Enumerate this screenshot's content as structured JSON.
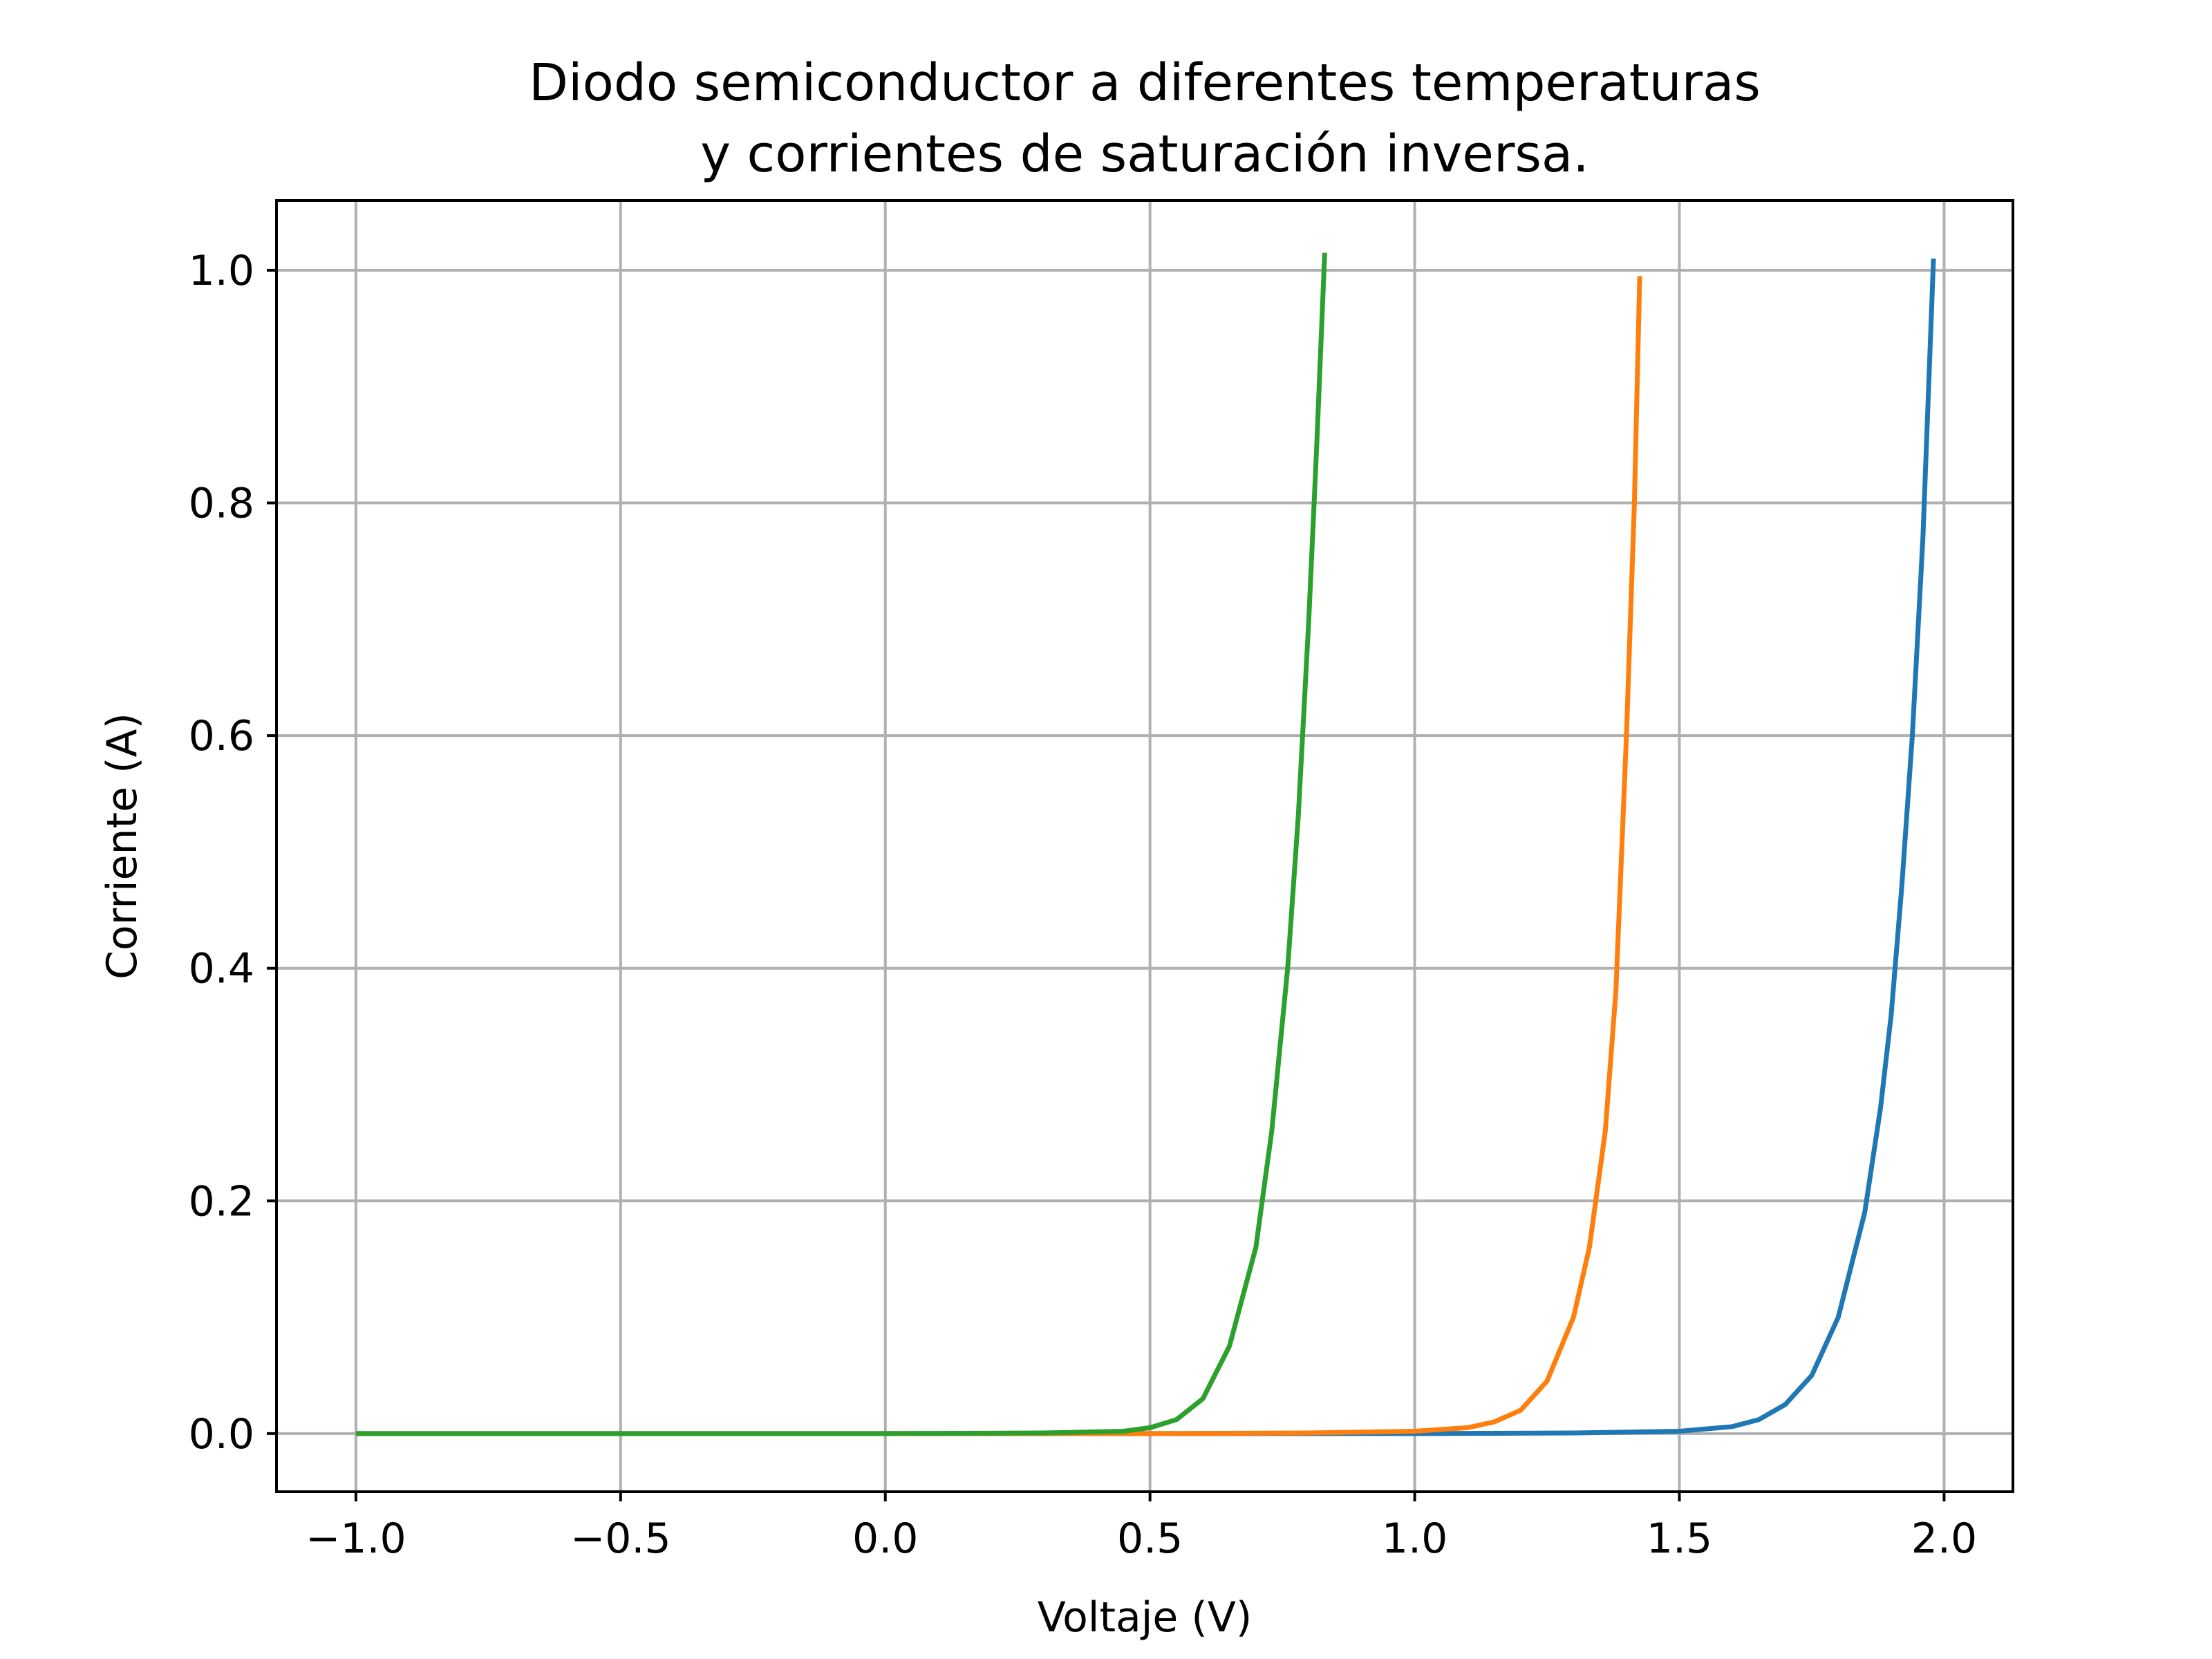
{
  "chart_data": {
    "type": "line",
    "title_lines": [
      "Diodo semiconductor a diferentes temperaturas",
      "y corrientes de saturación inversa."
    ],
    "xlabel": "Voltaje (V)",
    "ylabel": "Corriente (A)",
    "xlim": [
      -1.15,
      2.13
    ],
    "ylim": [
      -0.05,
      1.06
    ],
    "x_ticks": [
      -1.0,
      -0.5,
      0.0,
      0.5,
      1.0,
      1.5,
      2.0
    ],
    "x_tick_labels": [
      "−1.0",
      "−0.5",
      "0.0",
      "0.5",
      "1.0",
      "1.5",
      "2.0"
    ],
    "y_ticks": [
      0.0,
      0.2,
      0.4,
      0.6,
      0.8,
      1.0
    ],
    "y_tick_labels": [
      "0.0",
      "0.2",
      "0.4",
      "0.6",
      "0.8",
      "1.0"
    ],
    "grid": true,
    "series": [
      {
        "color": "#1f77b4",
        "points": [
          [
            -1.0,
            0.0
          ],
          [
            1.0,
            0.0
          ],
          [
            1.3,
            0.0005
          ],
          [
            1.5,
            0.002
          ],
          [
            1.6,
            0.006
          ],
          [
            1.65,
            0.012
          ],
          [
            1.7,
            0.025
          ],
          [
            1.75,
            0.05
          ],
          [
            1.8,
            0.1
          ],
          [
            1.85,
            0.19
          ],
          [
            1.88,
            0.28
          ],
          [
            1.9,
            0.36
          ],
          [
            1.92,
            0.47
          ],
          [
            1.94,
            0.6
          ],
          [
            1.96,
            0.77
          ],
          [
            1.98,
            1.01
          ]
        ]
      },
      {
        "color": "#ff7f0e",
        "points": [
          [
            -1.0,
            0.0
          ],
          [
            0.5,
            0.0
          ],
          [
            0.8,
            0.0005
          ],
          [
            1.0,
            0.002
          ],
          [
            1.1,
            0.005
          ],
          [
            1.15,
            0.01
          ],
          [
            1.2,
            0.02
          ],
          [
            1.25,
            0.045
          ],
          [
            1.3,
            0.1
          ],
          [
            1.33,
            0.16
          ],
          [
            1.36,
            0.26
          ],
          [
            1.38,
            0.38
          ],
          [
            1.4,
            0.6
          ],
          [
            1.415,
            0.8
          ],
          [
            1.425,
            0.995
          ]
        ]
      },
      {
        "color": "#2ca02c",
        "points": [
          [
            -1.0,
            0.0
          ],
          [
            0.0,
            0.0
          ],
          [
            0.3,
            0.0005
          ],
          [
            0.45,
            0.002
          ],
          [
            0.5,
            0.005
          ],
          [
            0.55,
            0.012
          ],
          [
            0.6,
            0.03
          ],
          [
            0.65,
            0.075
          ],
          [
            0.7,
            0.16
          ],
          [
            0.73,
            0.26
          ],
          [
            0.76,
            0.4
          ],
          [
            0.78,
            0.53
          ],
          [
            0.8,
            0.7
          ],
          [
            0.815,
            0.85
          ],
          [
            0.83,
            1.015
          ]
        ]
      }
    ]
  }
}
